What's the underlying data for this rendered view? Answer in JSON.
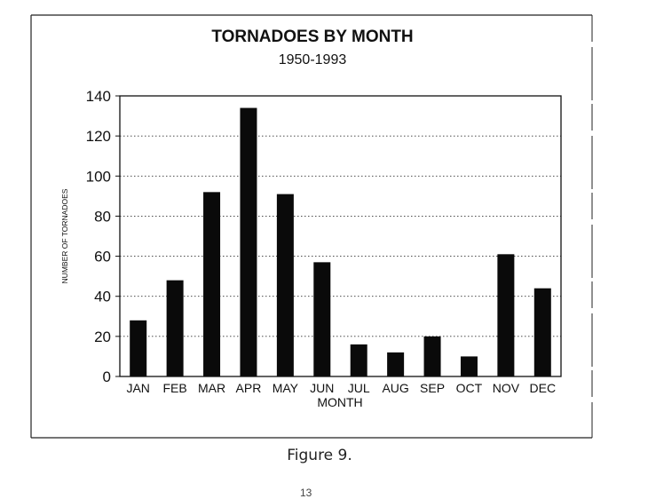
{
  "chart_data": {
    "type": "bar",
    "title": "TORNADOES BY MONTH",
    "subtitle": "1950-1993",
    "xlabel": "MONTH",
    "ylabel": "NUMBER OF TORNADOES",
    "categories": [
      "JAN",
      "FEB",
      "MAR",
      "APR",
      "MAY",
      "JUN",
      "JUL",
      "AUG",
      "SEP",
      "OCT",
      "NOV",
      "DEC"
    ],
    "values": [
      28,
      48,
      92,
      134,
      91,
      57,
      16,
      12,
      20,
      10,
      61,
      44
    ],
    "ylim": [
      0,
      140
    ],
    "yticks": [
      0,
      20,
      40,
      60,
      80,
      100,
      120,
      140
    ],
    "grid": "horizontal dotted",
    "legend": "none",
    "bar_color": "#0a0a0a"
  },
  "caption": "Figure 9.",
  "page_number": "13"
}
